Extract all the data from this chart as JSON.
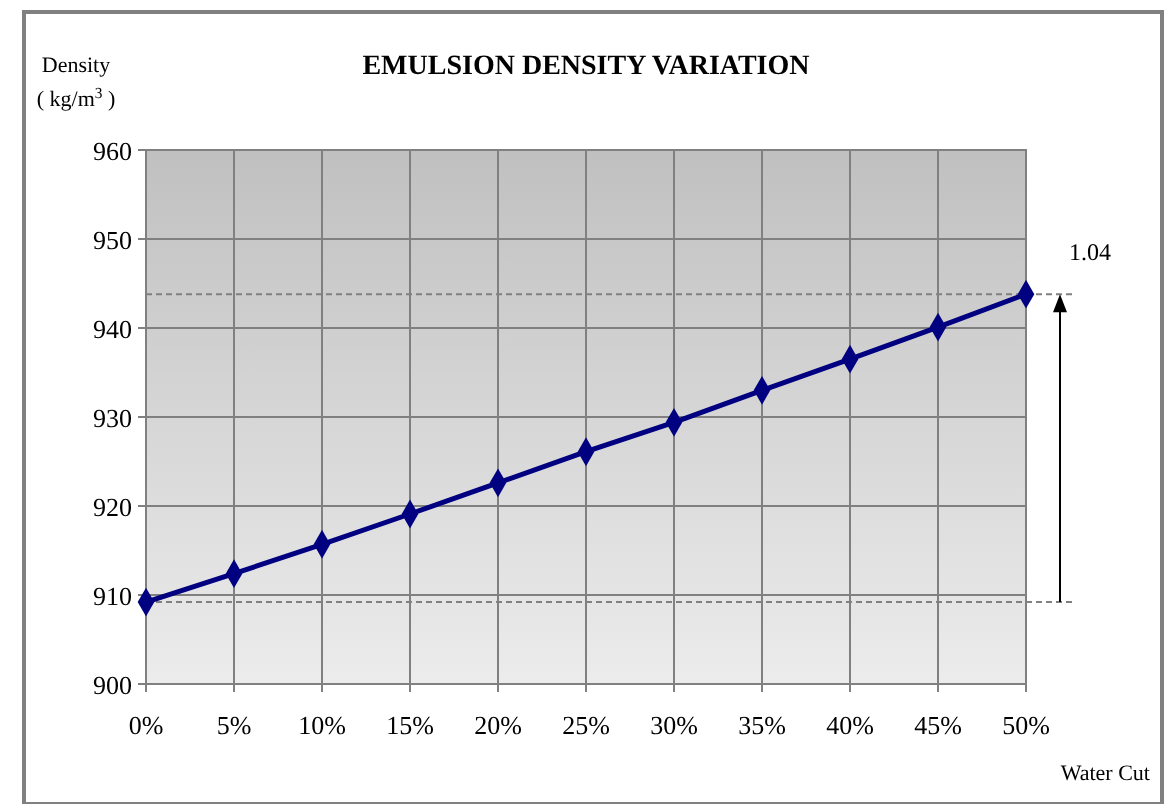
{
  "chart_data": {
    "type": "line",
    "title": "EMULSION DENSITY VARIATION",
    "xlabel": "Water Cut",
    "ylabel": "Density\n( kg/m$^{3}$ )",
    "categories": [
      "0%",
      "5%",
      "10%",
      "15%",
      "20%",
      "25%",
      "30%",
      "35%",
      "40%",
      "45%",
      "50%"
    ],
    "series": [
      {
        "color": "#000080",
        "values": [
          909.2,
          912.4,
          915.7,
          919.1,
          922.6,
          926.1,
          929.4,
          933.0,
          936.5,
          940.1,
          943.8
        ]
      }
    ],
    "ylim": [
      900,
      960
    ],
    "yticks": [
      900,
      910,
      920,
      930,
      940,
      950,
      960
    ],
    "grid": true,
    "marker": "diamond",
    "line_style": "solid",
    "ref_lines": [
      {
        "axis": "y",
        "value": 909.2,
        "color": "#808080",
        "line_style": "dashed"
      },
      {
        "axis": "y",
        "value": 943.8,
        "color": "#808080",
        "line_style": "dashed"
      }
    ],
    "annotations": [
      "1.04"
    ]
  }
}
